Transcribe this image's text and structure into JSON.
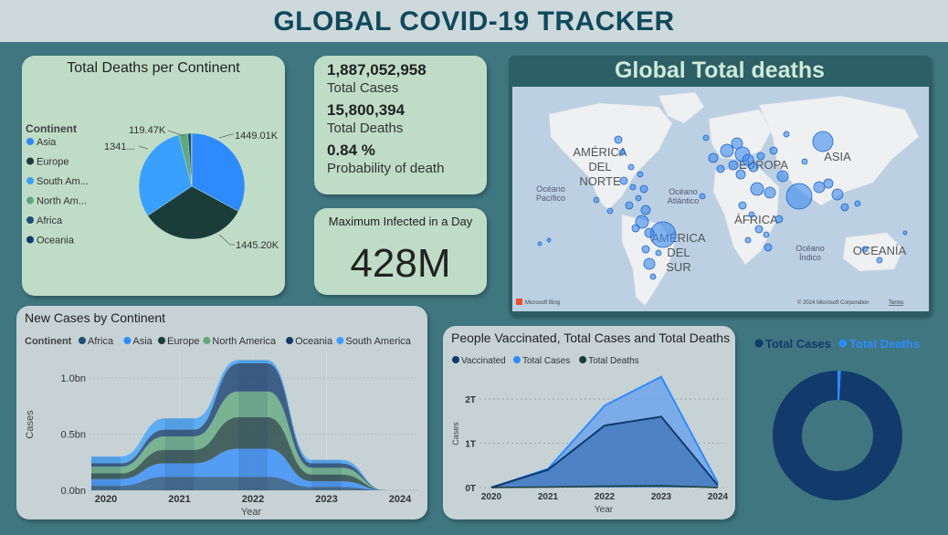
{
  "header": {
    "title": "GLOBAL COVID-19 TRACKER"
  },
  "colors": {
    "background": "#3f7680",
    "header_bg": "#ced9dc",
    "title": "#0f4a5c",
    "card_mint": "#bfdcc7",
    "card_grey": "#c7d2d5",
    "africa": "#1f4e79",
    "asia": "#2e8bff",
    "europe": "#1b3d3a",
    "north_america": "#5fa87a",
    "oceania": "#123a6b",
    "south_america": "#3aa0ff"
  },
  "pie_card": {
    "title": "Total Deaths per Continent",
    "legend_title": "Continent",
    "legend": [
      {
        "label": "Asia",
        "color": "#2e8bff"
      },
      {
        "label": "Europe",
        "color": "#1b3d3a"
      },
      {
        "label": "South Am...",
        "color": "#3aa0ff"
      },
      {
        "label": "North Am...",
        "color": "#5fa87a"
      },
      {
        "label": "Africa",
        "color": "#1f4e79"
      },
      {
        "label": "Oceania",
        "color": "#123a6b"
      }
    ],
    "slice_labels": [
      "1449.01K",
      "1445.20K",
      "1341...",
      "119.47K"
    ]
  },
  "kpis": {
    "total_cases_value": "1,887,052,958",
    "total_cases_label": "Total Cases",
    "total_deaths_value": "15,800,394",
    "total_deaths_label": "Total Deaths",
    "probability_value": "0.84 %",
    "probability_label": "Probability of death"
  },
  "max_infected": {
    "label": "Maximum Infected in a Day",
    "value": "428M"
  },
  "map": {
    "title": "Global Total deaths",
    "labels": [
      "AMÉRICA DEL NORTE",
      "EUROPA",
      "ASIA",
      "ÁFRICA",
      "AMÉRICA DEL SUR",
      "OCEANÍA"
    ],
    "oceans": [
      "Océano Pacífico",
      "Océano Atlántico",
      "Océano Índico"
    ],
    "attribution": "© 2024 Microsoft Corporation",
    "terms": "Terms",
    "bing": "Microsoft Bing"
  },
  "chart_data": [
    {
      "type": "pie",
      "title": "Total Deaths per Continent",
      "legend_title": "Continent",
      "categories": [
        "Asia",
        "Europe",
        "South America",
        "North America",
        "Africa",
        "Oceania"
      ],
      "values": [
        1449.01,
        1445.2,
        1341,
        119.47,
        45,
        10
      ],
      "units": "K",
      "colors": [
        "#2e8bff",
        "#1b3d3a",
        "#3aa0ff",
        "#5fa87a",
        "#1f4e79",
        "#123a6b"
      ]
    },
    {
      "type": "area",
      "title": "New Cases by Continent",
      "legend_title": "Continent",
      "xlabel": "Year",
      "ylabel": "Cases",
      "x": [
        2020,
        2021,
        2022,
        2023,
        2024
      ],
      "x_tick_labels": [
        "2020",
        "2021",
        "2022",
        "2023",
        "2024"
      ],
      "y_tick_labels": [
        "0.0bn",
        "0.5bn",
        "1.0bn"
      ],
      "ylim": [
        0,
        1.2
      ],
      "series": [
        {
          "name": "Africa",
          "color": "#1f4e79",
          "values": [
            0.04,
            0.12,
            0.12,
            0.03,
            0
          ]
        },
        {
          "name": "Asia",
          "color": "#2e8bff",
          "values": [
            0.06,
            0.12,
            0.25,
            0.05,
            0
          ]
        },
        {
          "name": "Europe",
          "color": "#1b3d3a",
          "values": [
            0.05,
            0.12,
            0.28,
            0.06,
            0
          ]
        },
        {
          "name": "North America",
          "color": "#5fa87a",
          "values": [
            0.06,
            0.12,
            0.23,
            0.06,
            0
          ]
        },
        {
          "name": "Oceania",
          "color": "#123a6b",
          "values": [
            0.03,
            0.06,
            0.25,
            0.04,
            0
          ]
        },
        {
          "name": "South America",
          "color": "#3aa0ff",
          "values": [
            0.06,
            0.1,
            0.03,
            0.03,
            0
          ]
        }
      ]
    },
    {
      "type": "area",
      "title": "People Vaccinated, Total Cases and Total Deaths",
      "xlabel": "Year",
      "ylabel": "Cases",
      "x": [
        2020,
        2021,
        2022,
        2023,
        2024
      ],
      "x_tick_labels": [
        "2020",
        "2021",
        "2022",
        "2023",
        "2024"
      ],
      "y_tick_labels": [
        "0T",
        "1T",
        "2T"
      ],
      "ylim": [
        0,
        2.6
      ],
      "series": [
        {
          "name": "Vaccinated",
          "color": "#123a6b",
          "values": [
            0,
            0.4,
            1.4,
            1.6,
            0.05
          ]
        },
        {
          "name": "Total Cases",
          "color": "#2e8bff",
          "values": [
            0,
            0.42,
            1.85,
            2.5,
            0.1
          ]
        },
        {
          "name": "Total Deaths",
          "color": "#1b3d3a",
          "values": [
            0,
            0.01,
            0.03,
            0.04,
            0
          ]
        }
      ]
    },
    {
      "type": "pie",
      "subtype": "donut",
      "legend": [
        "Total Cases",
        "Total Deaths"
      ],
      "categories": [
        "Total Cases",
        "Total Deaths"
      ],
      "values": [
        1887052958,
        15800394
      ],
      "colors": [
        "#123a6b",
        "#2e8bff"
      ]
    }
  ]
}
